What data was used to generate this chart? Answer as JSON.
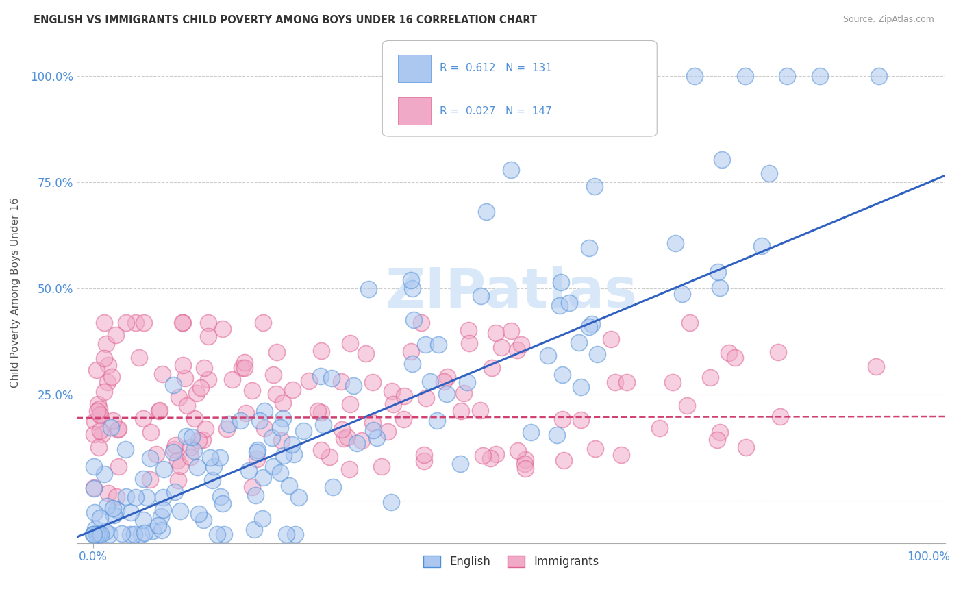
{
  "title": "ENGLISH VS IMMIGRANTS CHILD POVERTY AMONG BOYS UNDER 16 CORRELATION CHART",
  "source": "Source: ZipAtlas.com",
  "ylabel": "Child Poverty Among Boys Under 16",
  "english_R": 0.612,
  "english_N": 131,
  "immigrants_R": 0.027,
  "immigrants_N": 147,
  "english_fill": "#adc8f0",
  "english_edge": "#5090d8",
  "immigrants_fill": "#f0aac8",
  "immigrants_edge": "#e06090",
  "english_line_color": "#3060c0",
  "immigrants_line_color": "#d04070",
  "watermark_color": "#d8e8f8",
  "background_color": "#ffffff",
  "grid_color": "#cccccc",
  "tick_color": "#5090d8",
  "title_color": "#333333",
  "source_color": "#999999",
  "ylabel_color": "#555555"
}
